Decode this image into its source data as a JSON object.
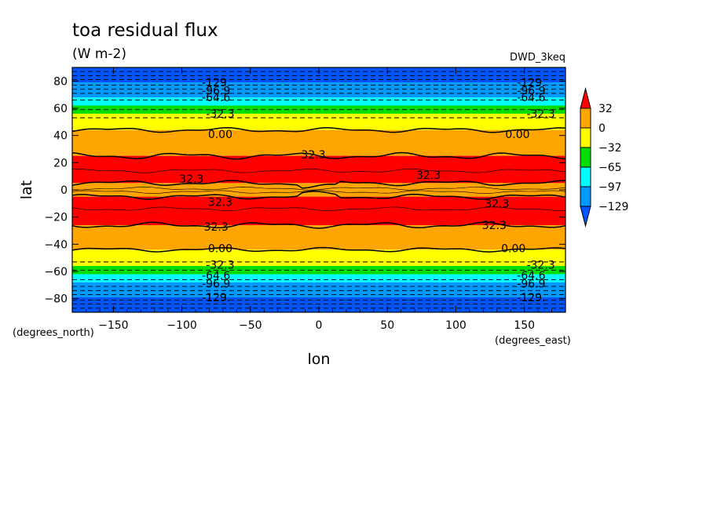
{
  "chart_data": {
    "type": "heatmap",
    "title": "toa residual flux",
    "units": "(W m-2)",
    "dataset_label": "DWD_3keq",
    "xlabel": "lon",
    "ylabel": "lat",
    "x_units": "(degrees_east)",
    "y_units": "(degrees_north)",
    "xlim": [
      -180,
      180
    ],
    "ylim": [
      -90,
      90
    ],
    "x_ticks": [
      -150,
      -100,
      -50,
      0,
      50,
      100,
      150
    ],
    "y_ticks": [
      -80,
      -60,
      -40,
      -20,
      0,
      20,
      40,
      60,
      80
    ],
    "colorbar": {
      "levels": [
        32,
        0,
        -32,
        -65,
        -97,
        -129
      ],
      "colors": [
        "#ff0000",
        "#ffa500",
        "#ffff00",
        "#00dd00",
        "#00ffff",
        "#0099ff",
        "#0055ff"
      ]
    },
    "bands": [
      {
        "lat_from": 90,
        "lat_to": 79,
        "color": "#0055ff"
      },
      {
        "lat_from": 79,
        "lat_to": 68,
        "color": "#0099ff"
      },
      {
        "lat_from": 68,
        "lat_to": 62,
        "color": "#00ffff"
      },
      {
        "lat_from": 62,
        "lat_to": 56,
        "color": "#00dd00"
      },
      {
        "lat_from": 56,
        "lat_to": 44,
        "color": "#ffff00"
      },
      {
        "lat_from": 44,
        "lat_to": 25,
        "color": "#ffa500"
      },
      {
        "lat_from": 25,
        "lat_to": 5,
        "color": "#ff0000"
      },
      {
        "lat_from": 5,
        "lat_to": -5,
        "color": "#ffa500"
      },
      {
        "lat_from": -5,
        "lat_to": -26,
        "color": "#ff0000"
      },
      {
        "lat_from": -26,
        "lat_to": -44,
        "color": "#ffa500"
      },
      {
        "lat_from": -44,
        "lat_to": -56,
        "color": "#ffff00"
      },
      {
        "lat_from": -56,
        "lat_to": -62,
        "color": "#00dd00"
      },
      {
        "lat_from": -62,
        "lat_to": -68,
        "color": "#00ffff"
      },
      {
        "lat_from": -68,
        "lat_to": -79,
        "color": "#0099ff"
      },
      {
        "lat_from": -79,
        "lat_to": -90,
        "color": "#0055ff"
      }
    ],
    "contour_labels": [
      {
        "text": "-129.",
        "lon": -75,
        "lat": 79
      },
      {
        "text": "-129.",
        "lon": 155,
        "lat": 79
      },
      {
        "text": "-96.9",
        "lon": -75,
        "lat": 73
      },
      {
        "text": "-96.9",
        "lon": 155,
        "lat": 73
      },
      {
        "text": "-64.6",
        "lon": -75,
        "lat": 68
      },
      {
        "text": "-64.6",
        "lon": 155,
        "lat": 68
      },
      {
        "text": "-32.3",
        "lon": -72,
        "lat": 56
      },
      {
        "text": "-32.3",
        "lon": 162,
        "lat": 56
      },
      {
        "text": "0.00",
        "lon": -72,
        "lat": 41
      },
      {
        "text": "0.00",
        "lon": 145,
        "lat": 41
      },
      {
        "text": "32.3",
        "lon": -4,
        "lat": 26
      },
      {
        "text": "32.3",
        "lon": 80,
        "lat": 11
      },
      {
        "text": "32.3",
        "lon": -93,
        "lat": 8
      },
      {
        "text": "32.3",
        "lon": -72,
        "lat": -9
      },
      {
        "text": "32.3",
        "lon": 130,
        "lat": -10
      },
      {
        "text": "32.3",
        "lon": -75,
        "lat": -27
      },
      {
        "text": "32.3",
        "lon": 128,
        "lat": -26
      },
      {
        "text": "0.00",
        "lon": -72,
        "lat": -43
      },
      {
        "text": "0.00",
        "lon": 142,
        "lat": -43
      },
      {
        "text": "-32.3",
        "lon": -72,
        "lat": -55
      },
      {
        "text": "-32.3",
        "lon": 162,
        "lat": -55
      },
      {
        "text": "-64.6",
        "lon": -75,
        "lat": -63
      },
      {
        "text": "-64.6",
        "lon": 155,
        "lat": -63
      },
      {
        "text": "-96.9",
        "lon": -75,
        "lat": -69
      },
      {
        "text": "-96.9",
        "lon": 155,
        "lat": -69
      },
      {
        "text": "-129.",
        "lon": -75,
        "lat": -79
      },
      {
        "text": "-129.",
        "lon": 155,
        "lat": -79
      }
    ]
  }
}
